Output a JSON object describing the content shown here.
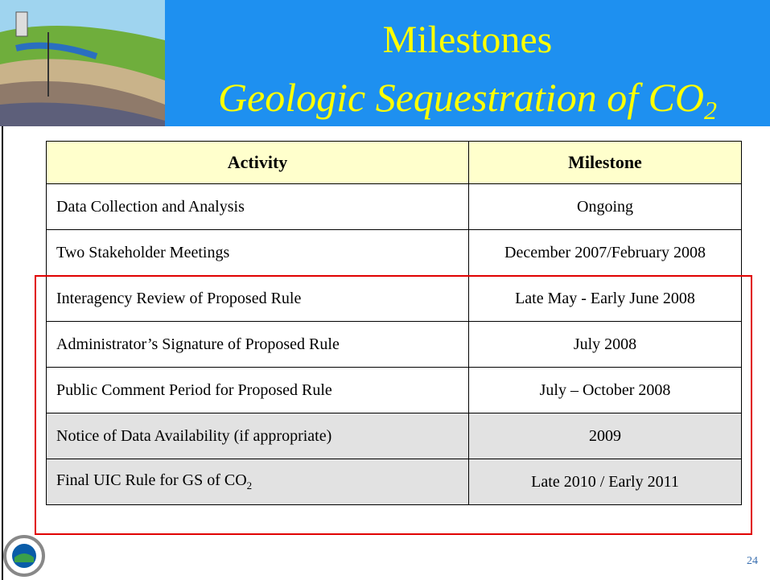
{
  "header": {
    "title": "Milestones",
    "subtitle": {
      "text": "Geologic Sequestration of CO",
      "subscript": "2"
    }
  },
  "table": {
    "columns": [
      "Activity",
      "Milestone"
    ],
    "rows": [
      [
        {
          "text": "Data Collection and Analysis"
        },
        "Ongoing"
      ],
      [
        {
          "text": "Two Stakeholder Meetings"
        },
        "December 2007/February 2008"
      ],
      [
        {
          "text": "Interagency Review of Proposed Rule"
        },
        "Late May - Early June 2008"
      ],
      [
        {
          "text": "Administrator’s Signature of Proposed Rule"
        },
        "July 2008"
      ],
      [
        {
          "text": "Public Comment Period for Proposed Rule"
        },
        "July – October 2008"
      ],
      [
        {
          "text": "Notice of Data Availability (if appropriate)"
        },
        "2009"
      ],
      [
        {
          "text": "Final UIC Rule for GS of CO",
          "subscript": "2"
        },
        "Late 2010 / Early 2011"
      ]
    ]
  },
  "page_number": "24"
}
